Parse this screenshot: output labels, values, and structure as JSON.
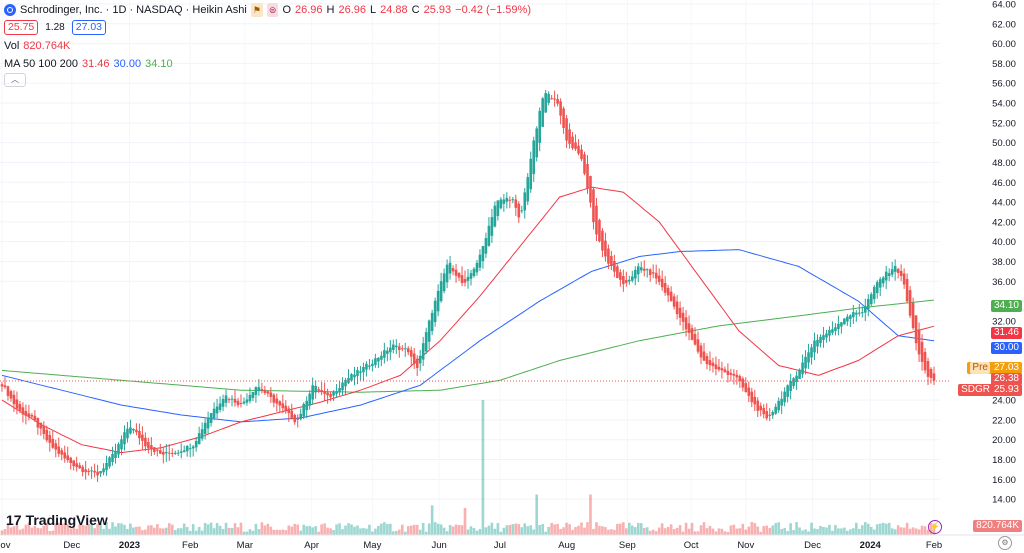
{
  "header": {
    "title": "Schrodinger, Inc. · 1D · NASDAQ · Heikin Ashi",
    "o_label": "O",
    "o": "26.96",
    "h_label": "H",
    "h": "26.96",
    "l_label": "L",
    "l": "24.88",
    "c_label": "C",
    "c": "25.93",
    "change": "−0.42 (−1.59%)",
    "bid": "25.75",
    "spread": "1.28",
    "ask": "27.03",
    "vol_label": "Vol",
    "vol_value": "820.764K",
    "ma_label": "MA 50 100 200",
    "ma_50": "31.46",
    "ma_100": "30.00",
    "ma_200": "34.10"
  },
  "branding": {
    "logo_text": "TradingView"
  },
  "price_tags": {
    "ma_200": "34.10",
    "ma_50": "31.46",
    "ma_100": "30.00",
    "pre_label": "Pre",
    "pre_value": "27.03",
    "last_value": "26.38",
    "symbol": "SDGR",
    "close_value": "25.93",
    "volume": "820.764K"
  },
  "colors": {
    "up": "#26a69a",
    "down": "#ef5350",
    "ma50": "#f23645",
    "ma100": "#2962ff",
    "ma200": "#4caf50"
  },
  "chart_data": {
    "type": "candlestick",
    "title": "Schrodinger, Inc. · 1D · NASDAQ · Heikin Ashi",
    "y_ticks": [
      "64.00",
      "62.00",
      "60.00",
      "58.00",
      "56.00",
      "54.00",
      "52.00",
      "50.00",
      "48.00",
      "46.00",
      "44.00",
      "42.00",
      "40.00",
      "38.00",
      "36.00",
      "32.00",
      "24.00",
      "22.00",
      "20.00",
      "18.00",
      "16.00",
      "14.00"
    ],
    "x_ticks": [
      "Nov",
      "Dec",
      "2023",
      "Feb",
      "Mar",
      "Apr",
      "May",
      "Jun",
      "Jul",
      "Aug",
      "Sep",
      "Oct",
      "Nov",
      "Dec",
      "2024",
      "Feb"
    ],
    "ylim": [
      12.4,
      64
    ],
    "price_points": [
      {
        "t": 0,
        "v": 25.6
      },
      {
        "t": 4,
        "v": 23.0
      },
      {
        "t": 8,
        "v": 22.0
      },
      {
        "t": 12,
        "v": 19.5
      },
      {
        "t": 16,
        "v": 18.0
      },
      {
        "t": 20,
        "v": 17.0
      },
      {
        "t": 24,
        "v": 16.5
      },
      {
        "t": 28,
        "v": 18.5
      },
      {
        "t": 32,
        "v": 21.5
      },
      {
        "t": 36,
        "v": 19.5
      },
      {
        "t": 40,
        "v": 18.5
      },
      {
        "t": 44,
        "v": 18.8
      },
      {
        "t": 48,
        "v": 19.5
      },
      {
        "t": 52,
        "v": 22.5
      },
      {
        "t": 56,
        "v": 24.5
      },
      {
        "t": 60,
        "v": 23.5
      },
      {
        "t": 64,
        "v": 25.5
      },
      {
        "t": 68,
        "v": 24.0
      },
      {
        "t": 72,
        "v": 22.5
      },
      {
        "t": 74,
        "v": 21.8
      },
      {
        "t": 78,
        "v": 25.5
      },
      {
        "t": 82,
        "v": 24.2
      },
      {
        "t": 86,
        "v": 26.0
      },
      {
        "t": 90,
        "v": 27.0
      },
      {
        "t": 94,
        "v": 28.2
      },
      {
        "t": 98,
        "v": 29.5
      },
      {
        "t": 102,
        "v": 29.0
      },
      {
        "t": 104,
        "v": 27.0
      },
      {
        "t": 108,
        "v": 33.0
      },
      {
        "t": 112,
        "v": 38.0
      },
      {
        "t": 116,
        "v": 35.5
      },
      {
        "t": 120,
        "v": 38.5
      },
      {
        "t": 124,
        "v": 44.0
      },
      {
        "t": 128,
        "v": 44.5
      },
      {
        "t": 130,
        "v": 42.0
      },
      {
        "t": 133,
        "v": 49.0
      },
      {
        "t": 136,
        "v": 55.0
      },
      {
        "t": 139,
        "v": 54.5
      },
      {
        "t": 142,
        "v": 50.0
      },
      {
        "t": 145,
        "v": 49.0
      },
      {
        "t": 147,
        "v": 45.5
      },
      {
        "t": 149,
        "v": 41.0
      },
      {
        "t": 152,
        "v": 38.0
      },
      {
        "t": 156,
        "v": 35.5
      },
      {
        "t": 160,
        "v": 37.5
      },
      {
        "t": 164,
        "v": 36.5
      },
      {
        "t": 168,
        "v": 34.0
      },
      {
        "t": 172,
        "v": 31.0
      },
      {
        "t": 176,
        "v": 28.0
      },
      {
        "t": 180,
        "v": 27.0
      },
      {
        "t": 184,
        "v": 26.5
      },
      {
        "t": 188,
        "v": 24.0
      },
      {
        "t": 192,
        "v": 22.0
      },
      {
        "t": 196,
        "v": 24.5
      },
      {
        "t": 200,
        "v": 27.0
      },
      {
        "t": 204,
        "v": 30.0
      },
      {
        "t": 208,
        "v": 31.0
      },
      {
        "t": 212,
        "v": 32.5
      },
      {
        "t": 216,
        "v": 33.0
      },
      {
        "t": 220,
        "v": 36.0
      },
      {
        "t": 224,
        "v": 37.5
      },
      {
        "t": 226,
        "v": 36.5
      },
      {
        "t": 228,
        "v": 32.5
      },
      {
        "t": 230,
        "v": 29.0
      },
      {
        "t": 232,
        "v": 26.5
      },
      {
        "t": 234,
        "v": 26.0
      }
    ],
    "volume_spikes": [
      {
        "t": 121,
        "v": 1.0
      },
      {
        "t": 134,
        "v": 0.3
      },
      {
        "t": 148,
        "v": 0.3
      },
      {
        "t": 108,
        "v": 0.22
      },
      {
        "t": 116,
        "v": 0.2
      }
    ],
    "ma50_points": [
      {
        "t": 0,
        "v": 24.0
      },
      {
        "t": 10,
        "v": 21.5
      },
      {
        "t": 20,
        "v": 19.5
      },
      {
        "t": 30,
        "v": 18.7
      },
      {
        "t": 40,
        "v": 19.2
      },
      {
        "t": 50,
        "v": 20.3
      },
      {
        "t": 60,
        "v": 21.8
      },
      {
        "t": 70,
        "v": 22.8
      },
      {
        "t": 80,
        "v": 23.8
      },
      {
        "t": 90,
        "v": 25.0
      },
      {
        "t": 100,
        "v": 26.5
      },
      {
        "t": 110,
        "v": 30.0
      },
      {
        "t": 120,
        "v": 34.5
      },
      {
        "t": 130,
        "v": 39.5
      },
      {
        "t": 140,
        "v": 44.5
      },
      {
        "t": 148,
        "v": 45.5
      },
      {
        "t": 156,
        "v": 45.0
      },
      {
        "t": 165,
        "v": 42.0
      },
      {
        "t": 175,
        "v": 36.5
      },
      {
        "t": 185,
        "v": 31.0
      },
      {
        "t": 195,
        "v": 27.5
      },
      {
        "t": 205,
        "v": 26.5
      },
      {
        "t": 215,
        "v": 28.0
      },
      {
        "t": 225,
        "v": 30.5
      },
      {
        "t": 234,
        "v": 31.46
      }
    ],
    "ma100_points": [
      {
        "t": 0,
        "v": 26.5
      },
      {
        "t": 15,
        "v": 25.0
      },
      {
        "t": 30,
        "v": 23.5
      },
      {
        "t": 45,
        "v": 22.5
      },
      {
        "t": 60,
        "v": 21.8
      },
      {
        "t": 75,
        "v": 22.2
      },
      {
        "t": 90,
        "v": 23.5
      },
      {
        "t": 105,
        "v": 25.5
      },
      {
        "t": 120,
        "v": 30.0
      },
      {
        "t": 135,
        "v": 34.0
      },
      {
        "t": 148,
        "v": 37.0
      },
      {
        "t": 160,
        "v": 38.5
      },
      {
        "t": 170,
        "v": 39.0
      },
      {
        "t": 185,
        "v": 39.2
      },
      {
        "t": 200,
        "v": 37.5
      },
      {
        "t": 215,
        "v": 34.0
      },
      {
        "t": 225,
        "v": 30.5
      },
      {
        "t": 234,
        "v": 30.0
      }
    ],
    "ma200_points": [
      {
        "t": 0,
        "v": 27.0
      },
      {
        "t": 30,
        "v": 26.0
      },
      {
        "t": 60,
        "v": 25.0
      },
      {
        "t": 90,
        "v": 24.8
      },
      {
        "t": 110,
        "v": 25.0
      },
      {
        "t": 125,
        "v": 26.0
      },
      {
        "t": 140,
        "v": 28.0
      },
      {
        "t": 160,
        "v": 30.0
      },
      {
        "t": 180,
        "v": 31.5
      },
      {
        "t": 200,
        "v": 32.5
      },
      {
        "t": 215,
        "v": 33.3
      },
      {
        "t": 234,
        "v": 34.1
      }
    ]
  }
}
